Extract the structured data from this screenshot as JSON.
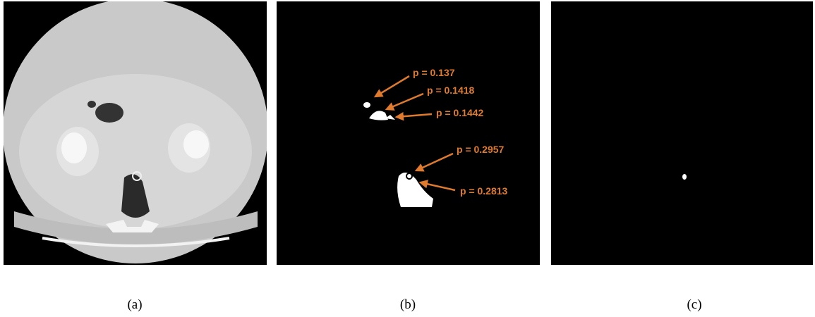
{
  "figure": {
    "panels": [
      {
        "caption": "(a)"
      },
      {
        "caption": "(b)",
        "annotations": [
          "p = 0.137",
          "p = 0.1418",
          "p = 0.1442",
          "p = 0.2957",
          "p = 0.2813"
        ]
      },
      {
        "caption": "(c)"
      }
    ]
  }
}
